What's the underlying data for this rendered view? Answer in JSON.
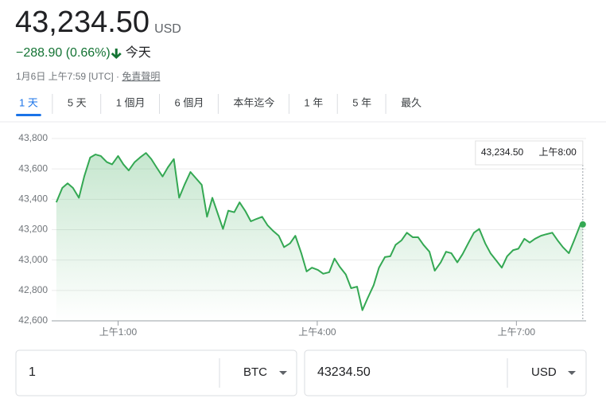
{
  "header": {
    "price": "43,234.50",
    "currency": "USD",
    "change": "−288.90 (0.66%)",
    "period": "今天",
    "timestamp": "1月6日 上午7:59 [UTC]",
    "separator": "·",
    "disclaimer": "免責聲明"
  },
  "tabs": {
    "items": [
      "1 天",
      "5 天",
      "1 個月",
      "6 個月",
      "本年迄今",
      "1 年",
      "5 年",
      "最久"
    ],
    "selected": 0
  },
  "chart_data": {
    "type": "line",
    "color": "#34a853",
    "grid": true,
    "x": [
      0.07,
      0.16,
      0.24,
      0.32,
      0.41,
      0.49,
      0.58,
      0.66,
      0.74,
      0.83,
      0.91,
      1.0,
      1.08,
      1.16,
      1.25,
      1.33,
      1.42,
      1.5,
      1.58,
      1.67,
      1.75,
      1.84,
      1.92,
      2.0,
      2.09,
      2.17,
      2.26,
      2.34,
      2.42,
      2.51,
      2.58,
      2.66,
      2.75,
      2.83,
      2.92,
      3.0,
      3.08,
      3.17,
      3.25,
      3.34,
      3.42,
      3.5,
      3.59,
      3.67,
      3.76,
      3.84,
      3.92,
      4.01,
      4.09,
      4.18,
      4.26,
      4.34,
      4.43,
      4.51,
      4.6,
      4.68,
      4.76,
      4.85,
      4.93,
      5.02,
      5.1,
      5.18,
      5.27,
      5.35,
      5.44,
      5.52,
      5.6,
      5.69,
      5.77,
      5.86,
      5.94,
      6.02,
      6.11,
      6.19,
      6.28,
      6.36,
      6.44,
      6.53,
      6.61,
      6.7,
      6.78,
      6.86,
      6.95,
      7.03,
      7.12,
      7.2,
      7.28,
      7.37,
      7.45,
      7.54,
      7.62,
      7.7,
      7.79,
      7.87,
      7.96,
      8.0
    ],
    "series": [
      {
        "name": "BTC/USD",
        "color": "#34a853",
        "values": [
          43380,
          43475,
          43505,
          43475,
          43410,
          43550,
          43675,
          43695,
          43685,
          43645,
          43630,
          43685,
          43630,
          43590,
          43645,
          43675,
          43705,
          43665,
          43610,
          43550,
          43610,
          43665,
          43410,
          43495,
          43580,
          43540,
          43495,
          43285,
          43410,
          43295,
          43205,
          43325,
          43315,
          43380,
          43320,
          43255,
          43270,
          43285,
          43230,
          43190,
          43160,
          43085,
          43110,
          43160,
          43045,
          42925,
          42950,
          42935,
          42910,
          42920,
          43010,
          42955,
          42905,
          42815,
          42825,
          42670,
          42750,
          42835,
          42950,
          43020,
          43025,
          43100,
          43130,
          43180,
          43150,
          43150,
          43100,
          43055,
          42930,
          42985,
          43055,
          43045,
          42985,
          43040,
          43115,
          43180,
          43205,
          43110,
          43045,
          42995,
          42950,
          43025,
          43065,
          43075,
          43140,
          43115,
          43140,
          43160,
          43170,
          43180,
          43130,
          43085,
          43045,
          43130,
          43230,
          43234.5
        ]
      }
    ],
    "xlim": [
      0,
      8.05
    ],
    "xticks": [
      {
        "value": 1,
        "label": "上午1:00"
      },
      {
        "value": 4,
        "label": "上午4:00"
      },
      {
        "value": 7,
        "label": "上午7:00"
      }
    ],
    "ylim": [
      42600,
      43800
    ],
    "yticks": [
      {
        "value": 42600,
        "label": "42,600"
      },
      {
        "value": 42800,
        "label": "42,800"
      },
      {
        "value": 43000,
        "label": "43,000"
      },
      {
        "value": 43200,
        "label": "43,200"
      },
      {
        "value": 43400,
        "label": "43,400"
      },
      {
        "value": 43600,
        "label": "43,600"
      },
      {
        "value": 43800,
        "label": "43,800"
      }
    ],
    "tooltip": {
      "value": "43,234.50",
      "time": "上午8:00"
    }
  },
  "converter": {
    "amount": "1",
    "unit": "BTC",
    "result": "43234.50",
    "result_unit": "USD"
  }
}
